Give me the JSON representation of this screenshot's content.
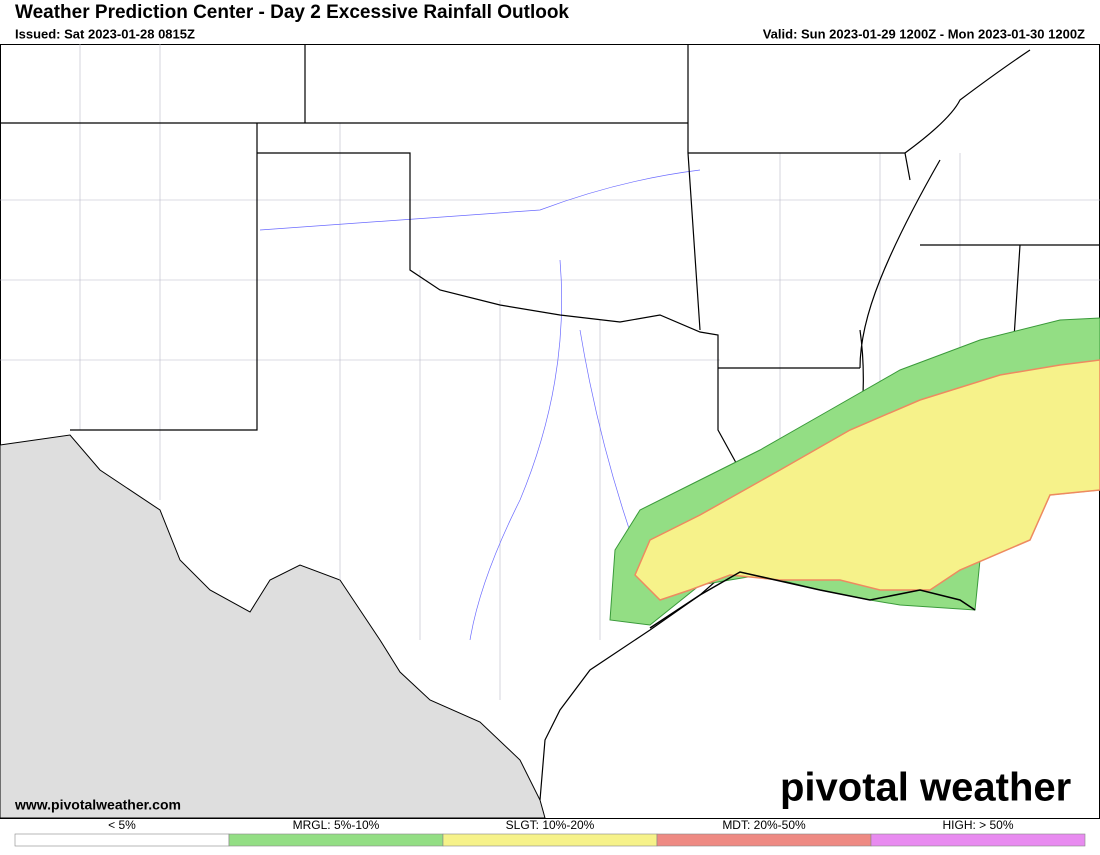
{
  "header": {
    "title": "Weather Prediction Center - Day 2 Excessive Rainfall Outlook",
    "issued": "Issued: Sat 2023-01-28 0815Z",
    "valid": "Valid: Sun 2023-01-29 1200Z - Mon 2023-01-30 1200Z"
  },
  "map": {
    "watermark": "pivotal weather",
    "url": "www.pivotalweather.com"
  },
  "legend": [
    {
      "label": "< 5%",
      "color": "#ffffff"
    },
    {
      "label": "MRGL: 5%-10%",
      "color": "#93de84"
    },
    {
      "label": "SLGT: 10%-20%",
      "color": "#f6f28a"
    },
    {
      "label": "MDT: 20%-50%",
      "color": "#ee8a83"
    },
    {
      "label": "HIGH: > 50%",
      "color": "#e88bf0"
    }
  ]
}
